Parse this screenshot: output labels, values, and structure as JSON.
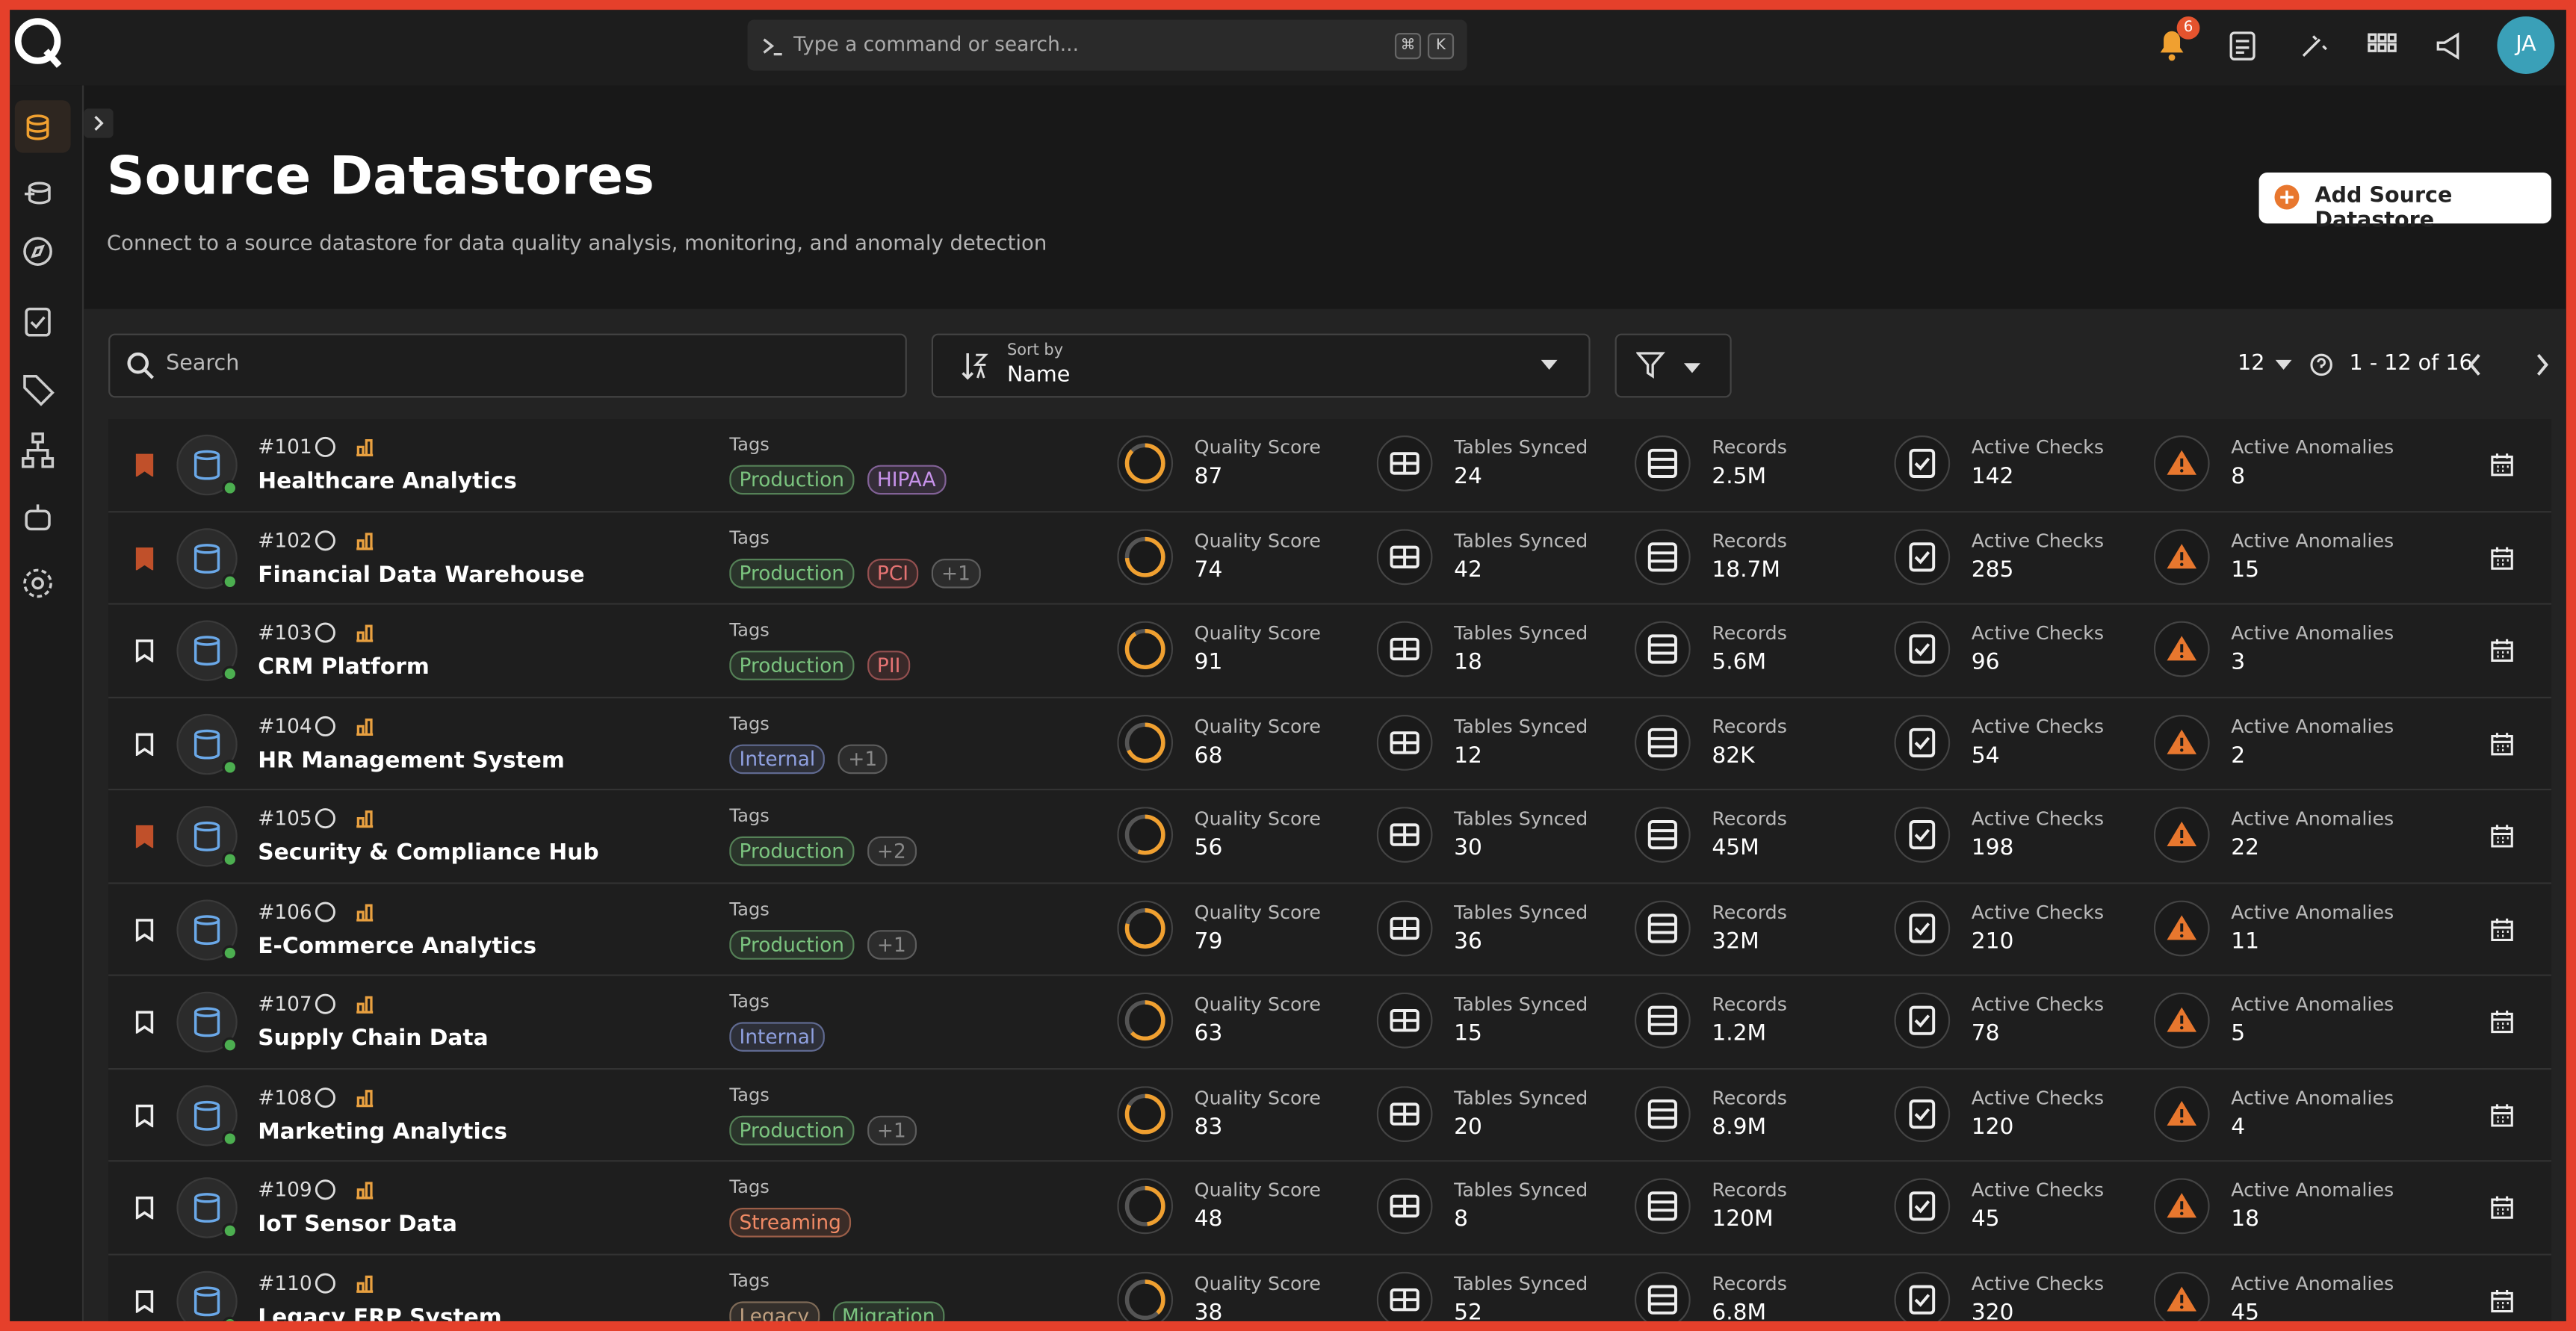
{
  "topbar": {
    "command_placeholder": "Type a command or search...",
    "shortcut_keys": [
      "⌘",
      "K"
    ],
    "notification_count": 6,
    "avatar": "JA"
  },
  "header": {
    "title": "Source Datastores",
    "subtitle": "Connect to a source datastore for data quality analysis, monitoring, and anomaly detection",
    "add_button": "Add Source Datastore"
  },
  "toolbar": {
    "search_placeholder": "Search",
    "sort_caption": "Sort by",
    "sort_value": "Name",
    "page_size": 12,
    "range": "1 - 12 of 16"
  },
  "columns": {
    "tags": "Tags",
    "quality": "Quality Score",
    "tables": "Tables Synced",
    "records": "Records",
    "checks": "Active Checks",
    "anomalies": "Active Anomalies"
  },
  "rows": [
    {
      "id": "#101",
      "name": "Healthcare Analytics",
      "bookmarked": true,
      "tags": [
        {
          "label": "Production",
          "color": "#7bc47f"
        },
        {
          "label": "HIPAA",
          "color": "#c792ea"
        }
      ],
      "quality_score": 87,
      "tables_synced": 24,
      "records": "2.5M",
      "active_checks": 142,
      "active_anomalies": 8
    },
    {
      "id": "#102",
      "name": "Financial Data Warehouse",
      "bookmarked": true,
      "tags": [
        {
          "label": "Production",
          "color": "#7bc47f"
        },
        {
          "label": "PCI",
          "color": "#e57373"
        },
        {
          "label": "+1",
          "color": "#888888"
        }
      ],
      "quality_score": 74,
      "tables_synced": 42,
      "records": "18.7M",
      "active_checks": 285,
      "active_anomalies": 15
    },
    {
      "id": "#103",
      "name": "CRM Platform",
      "bookmarked": false,
      "tags": [
        {
          "label": "Production",
          "color": "#7bc47f"
        },
        {
          "label": "PII",
          "color": "#e57373"
        }
      ],
      "quality_score": 91,
      "tables_synced": 18,
      "records": "5.6M",
      "active_checks": 96,
      "active_anomalies": 3
    },
    {
      "id": "#104",
      "name": "HR Management System",
      "bookmarked": false,
      "tags": [
        {
          "label": "Internal",
          "color": "#8fa0e0"
        },
        {
          "label": "+1",
          "color": "#888888"
        }
      ],
      "quality_score": 68,
      "tables_synced": 12,
      "records": "82K",
      "active_checks": 54,
      "active_anomalies": 2
    },
    {
      "id": "#105",
      "name": "Security & Compliance Hub",
      "bookmarked": true,
      "tags": [
        {
          "label": "Production",
          "color": "#7bc47f"
        },
        {
          "label": "+2",
          "color": "#888888"
        }
      ],
      "quality_score": 56,
      "tables_synced": 30,
      "records": "45M",
      "active_checks": 198,
      "active_anomalies": 22
    },
    {
      "id": "#106",
      "name": "E-Commerce Analytics",
      "bookmarked": false,
      "tags": [
        {
          "label": "Production",
          "color": "#7bc47f"
        },
        {
          "label": "+1",
          "color": "#888888"
        }
      ],
      "quality_score": 79,
      "tables_synced": 36,
      "records": "32M",
      "active_checks": 210,
      "active_anomalies": 11
    },
    {
      "id": "#107",
      "name": "Supply Chain Data",
      "bookmarked": false,
      "tags": [
        {
          "label": "Internal",
          "color": "#8fa0e0"
        }
      ],
      "quality_score": 63,
      "tables_synced": 15,
      "records": "1.2M",
      "active_checks": 78,
      "active_anomalies": 5
    },
    {
      "id": "#108",
      "name": "Marketing Analytics",
      "bookmarked": false,
      "tags": [
        {
          "label": "Production",
          "color": "#7bc47f"
        },
        {
          "label": "+1",
          "color": "#888888"
        }
      ],
      "quality_score": 83,
      "tables_synced": 20,
      "records": "8.9M",
      "active_checks": 120,
      "active_anomalies": 4
    },
    {
      "id": "#109",
      "name": "IoT Sensor Data",
      "bookmarked": false,
      "tags": [
        {
          "label": "Streaming",
          "color": "#f08a65"
        }
      ],
      "quality_score": 48,
      "tables_synced": 8,
      "records": "120M",
      "active_checks": 45,
      "active_anomalies": 18
    },
    {
      "id": "#110",
      "name": "Legacy ERP System",
      "bookmarked": false,
      "tags": [
        {
          "label": "Legacy",
          "color": "#c0a080"
        },
        {
          "label": "Migration",
          "color": "#7bc47f"
        }
      ],
      "quality_score": 38,
      "tables_synced": 52,
      "records": "6.8M",
      "active_checks": 320,
      "active_anomalies": 45
    }
  ]
}
